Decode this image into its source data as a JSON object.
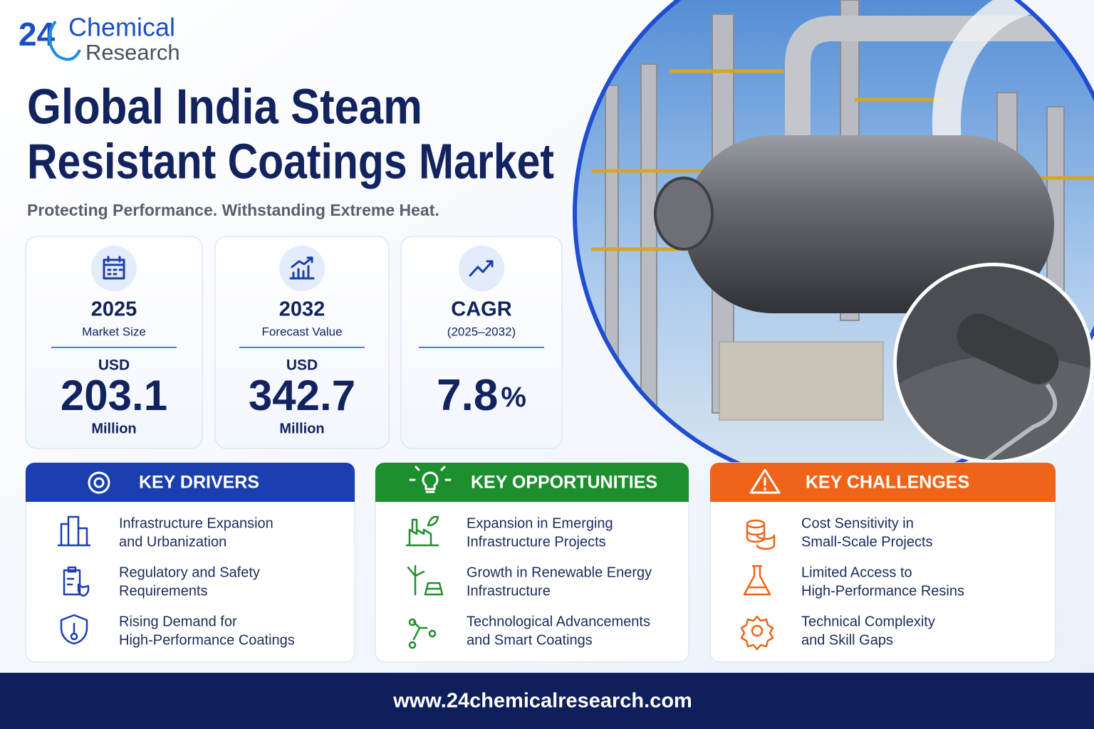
{
  "header": {
    "logo_number": "24",
    "logo_line1": "Chemical",
    "logo_line2": "Research",
    "title_line1": "Global India Steam",
    "title_line2": "Resistant Coatings Market",
    "subtitle": "Protecting Performance. Withstanding Extreme Heat."
  },
  "stats": [
    {
      "heading": "2025",
      "label": "Market Size",
      "prefix": "USD",
      "value": "203.1",
      "unit": "Million"
    },
    {
      "heading": "2032",
      "label": "Forecast Value",
      "prefix": "USD",
      "value": "342.7",
      "unit": "Million"
    },
    {
      "heading": "CAGR",
      "label": "(2025–2032)",
      "value": "7.8",
      "unit": "%"
    }
  ],
  "panels": [
    {
      "title": "KEY DRIVERS",
      "items": [
        {
          "lines": [
            "Infrastructure Expansion",
            "and Urbanization"
          ]
        },
        {
          "lines": [
            "Regulatory and Safety",
            "Requirements"
          ]
        },
        {
          "lines": [
            "Rising Demand for",
            "High-Performance Coatings"
          ]
        }
      ]
    },
    {
      "title": "KEY OPPORTUNITIES",
      "items": [
        {
          "lines": [
            "Expansion in Emerging",
            "Infrastructure Projects"
          ]
        },
        {
          "lines": [
            "Growth in Renewable Energy",
            "Infrastructure"
          ]
        },
        {
          "lines": [
            "Technological Advancements",
            "and Smart Coatings"
          ]
        }
      ]
    },
    {
      "title": "KEY CHALLENGES",
      "items": [
        {
          "lines": [
            "Cost Sensitivity in",
            "Small-Scale Projects"
          ]
        },
        {
          "lines": [
            "Limited Access to",
            "High-Performance Resins"
          ]
        },
        {
          "lines": [
            "Technical Complexity",
            "and Skill Gaps"
          ]
        }
      ]
    }
  ],
  "footer": {
    "url": "www.24chemicalresearch.com"
  }
}
